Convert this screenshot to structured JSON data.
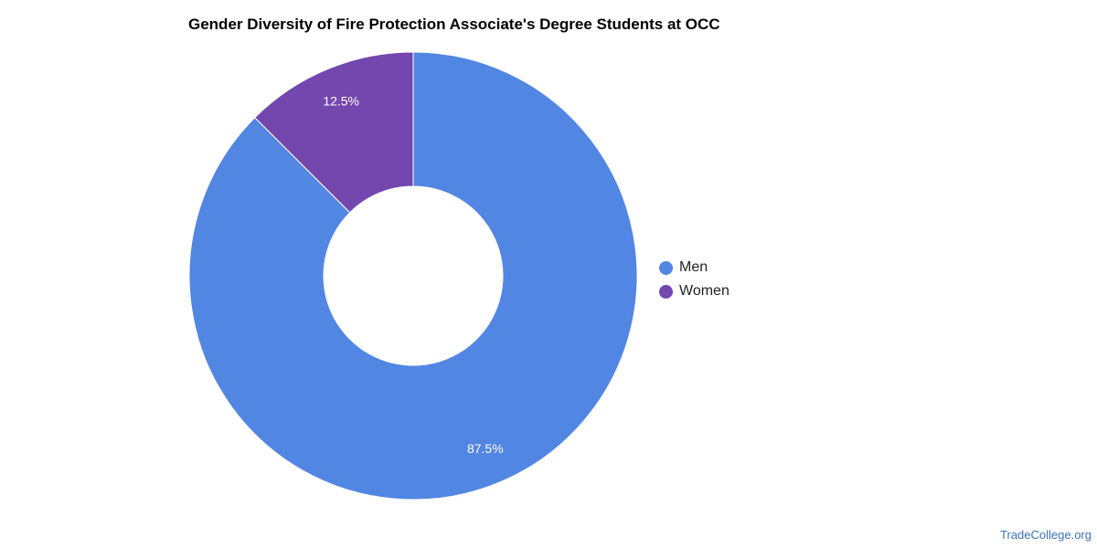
{
  "chart_data": {
    "type": "pie",
    "style": "donut",
    "title": "Gender Diversity of Fire Protection Associate's Degree Students at OCC",
    "categories": [
      "Men",
      "Women"
    ],
    "values": [
      87.5,
      12.5
    ],
    "labels": [
      "87.5%",
      "12.5%"
    ],
    "colors": [
      "#5286e3",
      "#7447ae"
    ],
    "legend_position": "right"
  },
  "watermark": "TradeCollege.org"
}
